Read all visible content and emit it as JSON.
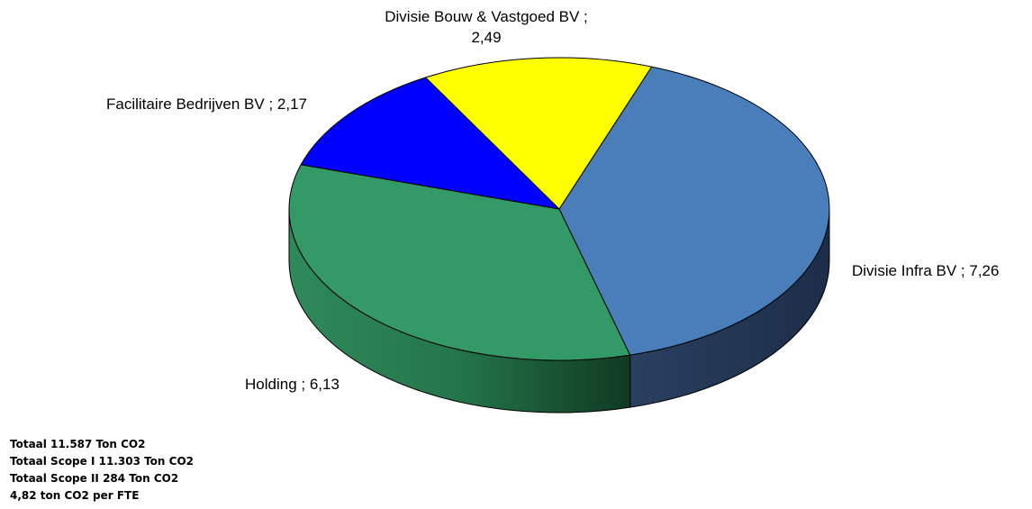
{
  "chart_data": {
    "type": "pie",
    "style": "3d",
    "slices": [
      {
        "label": "Divisie Infra BV ; 7,26",
        "value": 7.26,
        "color": "#4a7ebb"
      },
      {
        "label": "Holding ; 6,13",
        "value": 6.13,
        "color": "#339966"
      },
      {
        "label": "Facilitaire Bedrijven BV ; 2,17",
        "value": 2.17,
        "color": "#0000ff"
      },
      {
        "label_lines": [
          "Divisie Bouw & Vastgoed BV ;",
          "2,49"
        ],
        "value": 2.49,
        "color": "#ffff00"
      }
    ]
  },
  "notes": [
    "Totaal 11.587 Ton CO2",
    "Totaal Scope I 11.303 Ton CO2",
    "Totaal Scope II 284 Ton CO2",
    "4,82 ton CO2 per FTE"
  ]
}
